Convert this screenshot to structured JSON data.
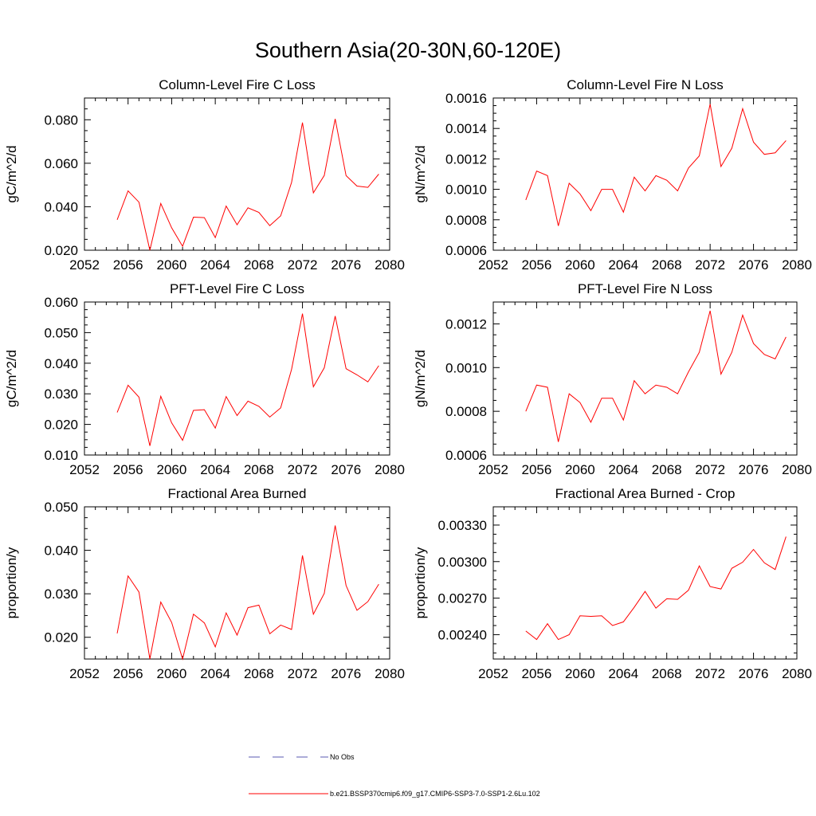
{
  "main_title": "Southern Asia(20-30N,60-120E)",
  "legend": [
    {
      "label": "No Obs",
      "color": "#5a5ab0",
      "style": "dashed"
    },
    {
      "label": "b.e21.BSSP370cmip6.f09_g17.CMIP6-SSP3-7.0-SSP1-2.6Lu.102",
      "color": "#ff0000",
      "style": "solid"
    }
  ],
  "chart_data": [
    {
      "type": "line",
      "title": "Column-Level Fire C Loss",
      "ylabel": "gC/m^2/d",
      "xlim": [
        2052,
        2080
      ],
      "xticks": [
        "2052",
        "2056",
        "2060",
        "2064",
        "2068",
        "2072",
        "2076",
        "2080"
      ],
      "ylim": [
        0.02,
        0.09
      ],
      "yticks": [
        "0.020",
        "0.040",
        "0.060",
        "0.080"
      ],
      "series": [
        {
          "color": "#ff0000",
          "x": [
            2055,
            2056,
            2057,
            2058,
            2059,
            2060,
            2061,
            2062,
            2063,
            2064,
            2065,
            2066,
            2067,
            2068,
            2069,
            2070,
            2071,
            2072,
            2073,
            2074,
            2075,
            2076,
            2077,
            2078,
            2079
          ],
          "values": [
            0.034,
            0.0473,
            0.0421,
            0.02,
            0.0415,
            0.0303,
            0.0218,
            0.0352,
            0.035,
            0.0258,
            0.0403,
            0.0317,
            0.0395,
            0.0374,
            0.0313,
            0.0358,
            0.0512,
            0.0787,
            0.0464,
            0.0544,
            0.0804,
            0.0543,
            0.0495,
            0.0489,
            0.055
          ]
        }
      ]
    },
    {
      "type": "line",
      "title": "Column-Level Fire N Loss",
      "ylabel": "gN/m^2/d",
      "xlim": [
        2052,
        2080
      ],
      "xticks": [
        "2052",
        "2056",
        "2060",
        "2064",
        "2068",
        "2072",
        "2076",
        "2080"
      ],
      "ylim": [
        0.0006,
        0.0016
      ],
      "yticks": [
        "0.0006",
        "0.0008",
        "0.0010",
        "0.0012",
        "0.0014",
        "0.0016"
      ],
      "series": [
        {
          "color": "#ff0000",
          "x": [
            2055,
            2056,
            2057,
            2058,
            2059,
            2060,
            2061,
            2062,
            2063,
            2064,
            2065,
            2066,
            2067,
            2068,
            2069,
            2070,
            2071,
            2072,
            2073,
            2074,
            2075,
            2076,
            2077,
            2078,
            2079
          ],
          "values": [
            0.00093,
            0.00112,
            0.00109,
            0.00076,
            0.00104,
            0.00097,
            0.00086,
            0.001,
            0.001,
            0.00085,
            0.00108,
            0.00099,
            0.00109,
            0.00106,
            0.00099,
            0.00114,
            0.00122,
            0.00156,
            0.00115,
            0.00127,
            0.00153,
            0.00131,
            0.00123,
            0.00124,
            0.00132
          ]
        }
      ]
    },
    {
      "type": "line",
      "title": "PFT-Level Fire C Loss",
      "ylabel": "gC/m^2/d",
      "xlim": [
        2052,
        2080
      ],
      "xticks": [
        "2052",
        "2056",
        "2060",
        "2064",
        "2068",
        "2072",
        "2076",
        "2080"
      ],
      "ylim": [
        0.01,
        0.06
      ],
      "yticks": [
        "0.010",
        "0.020",
        "0.030",
        "0.040",
        "0.050",
        "0.060"
      ],
      "series": [
        {
          "color": "#ff0000",
          "x": [
            2055,
            2056,
            2057,
            2058,
            2059,
            2060,
            2061,
            2062,
            2063,
            2064,
            2065,
            2066,
            2067,
            2068,
            2069,
            2070,
            2071,
            2072,
            2073,
            2074,
            2075,
            2076,
            2077,
            2078,
            2079
          ],
          "values": [
            0.0239,
            0.0328,
            0.0289,
            0.013,
            0.0292,
            0.0205,
            0.0148,
            0.0246,
            0.0248,
            0.0188,
            0.0291,
            0.0229,
            0.0276,
            0.0259,
            0.0224,
            0.0254,
            0.038,
            0.0562,
            0.0323,
            0.0385,
            0.0554,
            0.0382,
            0.0362,
            0.0339,
            0.0392
          ]
        }
      ]
    },
    {
      "type": "line",
      "title": "PFT-Level Fire N Loss",
      "ylabel": "gN/m^2/d",
      "xlim": [
        2052,
        2080
      ],
      "xticks": [
        "2052",
        "2056",
        "2060",
        "2064",
        "2068",
        "2072",
        "2076",
        "2080"
      ],
      "ylim": [
        0.0006,
        0.0013
      ],
      "yticks": [
        "0.0006",
        "0.0008",
        "0.0010",
        "0.0012"
      ],
      "series": [
        {
          "color": "#ff0000",
          "x": [
            2055,
            2056,
            2057,
            2058,
            2059,
            2060,
            2061,
            2062,
            2063,
            2064,
            2065,
            2066,
            2067,
            2068,
            2069,
            2070,
            2071,
            2072,
            2073,
            2074,
            2075,
            2076,
            2077,
            2078,
            2079
          ],
          "values": [
            0.0008,
            0.00092,
            0.00091,
            0.00066,
            0.00088,
            0.00084,
            0.00075,
            0.00086,
            0.00086,
            0.00076,
            0.00094,
            0.00088,
            0.00092,
            0.00091,
            0.00088,
            0.00098,
            0.00107,
            0.00126,
            0.00097,
            0.00107,
            0.00124,
            0.00111,
            0.00106,
            0.00104,
            0.00114
          ]
        }
      ]
    },
    {
      "type": "line",
      "title": "Fractional Area Burned",
      "ylabel": "proportion/y",
      "xlim": [
        2052,
        2080
      ],
      "xticks": [
        "2052",
        "2056",
        "2060",
        "2064",
        "2068",
        "2072",
        "2076",
        "2080"
      ],
      "ylim": [
        0.015,
        0.05
      ],
      "yticks": [
        "0.020",
        "0.030",
        "0.040",
        "0.050"
      ],
      "series": [
        {
          "color": "#ff0000",
          "x": [
            2055,
            2056,
            2057,
            2058,
            2059,
            2060,
            2061,
            2062,
            2063,
            2064,
            2065,
            2066,
            2067,
            2068,
            2069,
            2070,
            2071,
            2072,
            2073,
            2074,
            2075,
            2076,
            2077,
            2078,
            2079
          ],
          "values": [
            0.0209,
            0.0341,
            0.0304,
            0.015,
            0.0281,
            0.0234,
            0.015,
            0.0253,
            0.0233,
            0.0178,
            0.0256,
            0.0205,
            0.0268,
            0.0274,
            0.0208,
            0.0228,
            0.0218,
            0.0388,
            0.0253,
            0.0301,
            0.0457,
            0.0319,
            0.0262,
            0.0282,
            0.0322
          ]
        }
      ]
    },
    {
      "type": "line",
      "title": "Fractional Area Burned - Crop",
      "ylabel": "proportion/y",
      "xlim": [
        2052,
        2080
      ],
      "xticks": [
        "2052",
        "2056",
        "2060",
        "2064",
        "2068",
        "2072",
        "2076",
        "2080"
      ],
      "ylim": [
        0.0022,
        0.00345
      ],
      "yticks": [
        "0.00240",
        "0.00270",
        "0.00300",
        "0.00330"
      ],
      "series": [
        {
          "color": "#ff0000",
          "x": [
            2055,
            2056,
            2057,
            2058,
            2059,
            2060,
            2061,
            2062,
            2063,
            2064,
            2065,
            2066,
            2067,
            2068,
            2069,
            2070,
            2071,
            2072,
            2073,
            2074,
            2075,
            2076,
            2077,
            2078,
            2079
          ],
          "values": [
            0.00243,
            0.00236,
            0.00249,
            0.00236,
            0.0024,
            0.002555,
            0.00255,
            0.002555,
            0.002475,
            0.002505,
            0.002625,
            0.002755,
            0.002618,
            0.002695,
            0.00269,
            0.002765,
            0.002965,
            0.002795,
            0.002775,
            0.002945,
            0.002995,
            0.0031,
            0.00299,
            0.002935,
            0.003205
          ]
        }
      ]
    }
  ]
}
